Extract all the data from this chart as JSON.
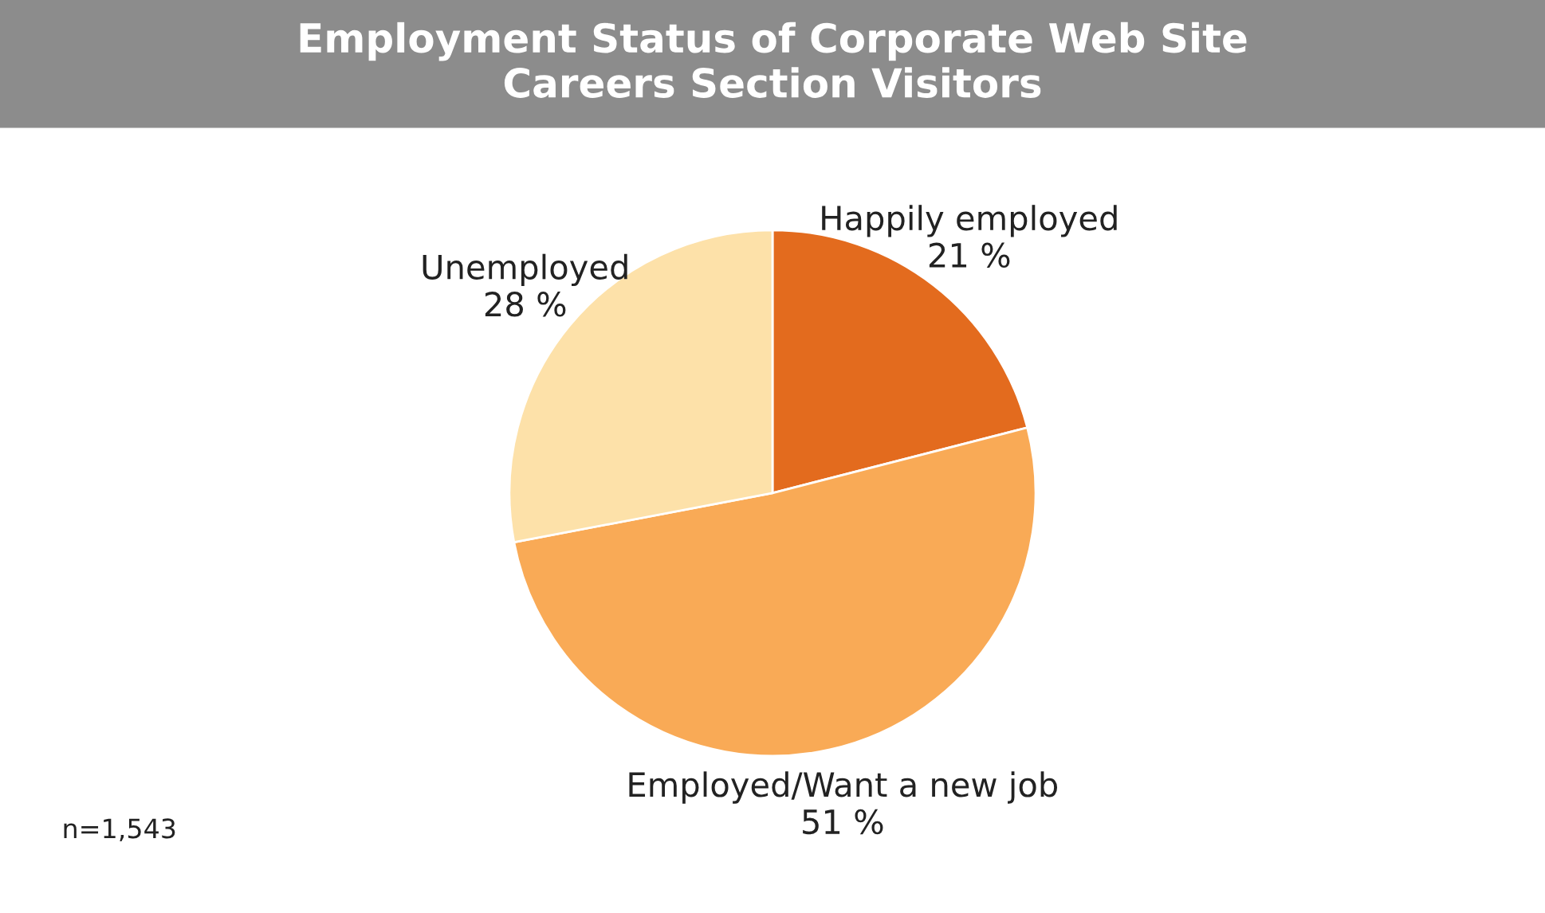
{
  "chart_data": {
    "type": "pie",
    "title": "Employment Status of Corporate Web Site\nCareers Section Visitors",
    "categories": [
      "Happily employed",
      "Employed/Want a new job",
      "Unemployed"
    ],
    "values": [
      21,
      51,
      28
    ],
    "value_labels": [
      "21 %",
      "51 %",
      "28 %"
    ],
    "colors": [
      "#e36b1e",
      "#f9aa56",
      "#fde1a9"
    ],
    "annotations": [
      "n=1,543"
    ],
    "legend": false
  }
}
